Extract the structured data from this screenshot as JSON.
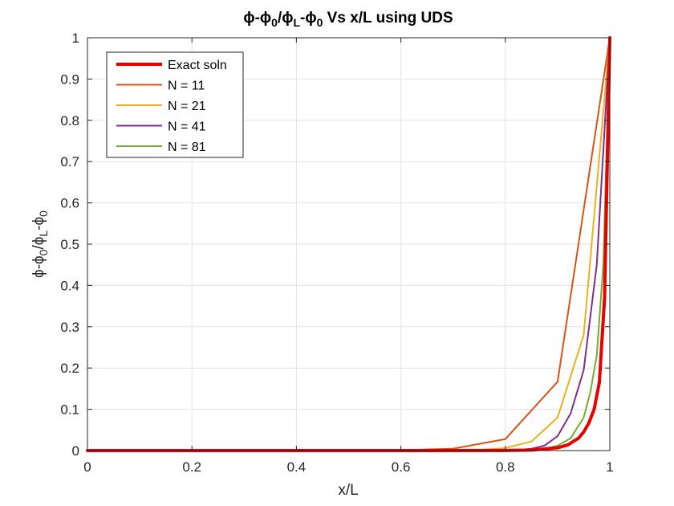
{
  "chart_data": {
    "type": "line",
    "title_parts": [
      "ϕ-ϕ",
      "0",
      "/ϕ",
      "L",
      "-ϕ",
      "0",
      " Vs x/L using UDS"
    ],
    "xlabel": "x/L",
    "ylabel_parts": [
      "ϕ-ϕ",
      "0",
      "/ϕ",
      "L",
      "-ϕ",
      "0"
    ],
    "xlim": [
      0,
      1
    ],
    "ylim": [
      0,
      1
    ],
    "xticks": [
      0,
      0.2,
      0.4,
      0.6,
      0.8,
      1
    ],
    "xtick_labels": [
      "0",
      "0.2",
      "0.4",
      "0.6",
      "0.8",
      "1"
    ],
    "yticks": [
      0,
      0.1,
      0.2,
      0.3,
      0.4,
      0.5,
      0.6,
      0.7,
      0.8,
      0.9,
      1
    ],
    "ytick_labels": [
      "0",
      "0.1",
      "0.2",
      "0.3",
      "0.4",
      "0.5",
      "0.6",
      "0.7",
      "0.8",
      "0.9",
      "1"
    ],
    "grid": true,
    "legend_position": "top-left",
    "series": [
      {
        "name": "Exact soln",
        "color": "#e60000",
        "width": "thick",
        "x": [
          0,
          0.5,
          0.8,
          0.85,
          0.9,
          0.92,
          0.94,
          0.95,
          0.96,
          0.97,
          0.98,
          0.99,
          1.0
        ],
        "y": [
          0,
          0,
          0.0003,
          0.0012,
          0.0067,
          0.014,
          0.03,
          0.045,
          0.067,
          0.1,
          0.165,
          0.37,
          1.0
        ]
      },
      {
        "name": "N = 11",
        "color": "#d95319",
        "width": "thin",
        "x": [
          0,
          0.1,
          0.2,
          0.3,
          0.4,
          0.5,
          0.6,
          0.7,
          0.8,
          0.9,
          1.0
        ],
        "y": [
          0.0,
          0.0,
          0.0,
          0.0,
          0.0,
          0.0,
          0.0008,
          0.0046,
          0.0278,
          0.1667,
          1.0
        ]
      },
      {
        "name": "N = 21",
        "color": "#edb120",
        "width": "thin",
        "x": [
          0,
          0.65,
          0.7,
          0.75,
          0.8,
          0.85,
          0.9,
          0.95,
          1.0
        ],
        "y": [
          0.0,
          0.0,
          0.0002,
          0.0012,
          0.0062,
          0.022,
          0.08,
          0.28,
          1.0
        ]
      },
      {
        "name": "N = 41",
        "color": "#7e2f8e",
        "width": "thin",
        "x": [
          0,
          0.75,
          0.8,
          0.825,
          0.85,
          0.875,
          0.9,
          0.925,
          0.95,
          0.975,
          1.0
        ],
        "y": [
          0.0,
          0.0,
          0.0007,
          0.0017,
          0.0044,
          0.012,
          0.035,
          0.09,
          0.195,
          0.45,
          1.0
        ]
      },
      {
        "name": "N = 81",
        "color": "#77ac30",
        "width": "thin",
        "x": [
          0,
          0.8,
          0.85,
          0.875,
          0.9,
          0.925,
          0.95,
          0.9625,
          0.975,
          0.9875,
          1.0
        ],
        "y": [
          0.0,
          0.0,
          0.0015,
          0.0045,
          0.012,
          0.03,
          0.08,
          0.14,
          0.23,
          0.45,
          1.0
        ]
      }
    ]
  }
}
